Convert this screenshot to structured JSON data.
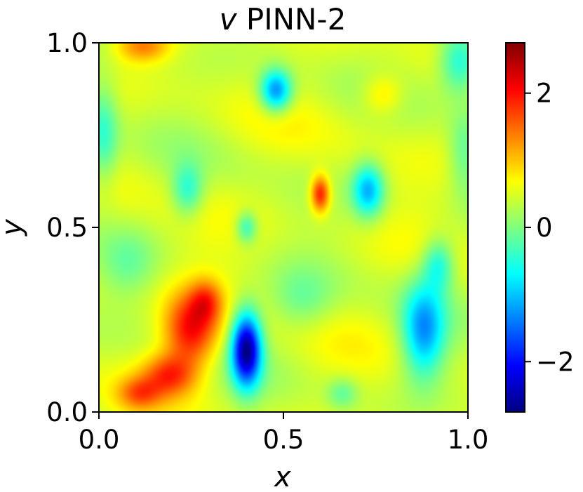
{
  "chart_data": {
    "type": "heatmap",
    "title_var": "v",
    "title_rest": " PINN-2",
    "xlabel": "x",
    "ylabel": "y",
    "xlim": [
      0.0,
      1.0
    ],
    "ylim": [
      0.0,
      1.0
    ],
    "x_ticks": [
      {
        "value": 0.0,
        "label": "0.0"
      },
      {
        "value": 0.5,
        "label": "0.5"
      },
      {
        "value": 1.0,
        "label": "1.0"
      }
    ],
    "y_ticks": [
      {
        "value": 0.0,
        "label": "0.0"
      },
      {
        "value": 0.5,
        "label": "0.5"
      },
      {
        "value": 1.0,
        "label": "1.0"
      }
    ],
    "colorbar": {
      "colormap": "jet",
      "range": [
        -2.75,
        2.75
      ],
      "ticks": [
        {
          "value": 2,
          "label": "2"
        },
        {
          "value": 0,
          "label": "0"
        },
        {
          "value": -2,
          "label": "−2"
        }
      ]
    },
    "background_value": 0.45,
    "field_features": [
      {
        "x": 0.25,
        "y": 0.22,
        "value": 1.6,
        "sx": 0.05,
        "sy": 0.07
      },
      {
        "x": 0.19,
        "y": 0.1,
        "value": 1.2,
        "sx": 0.05,
        "sy": 0.04
      },
      {
        "x": 0.29,
        "y": 0.3,
        "value": 0.9,
        "sx": 0.03,
        "sy": 0.04
      },
      {
        "x": 0.11,
        "y": 0.05,
        "value": 0.9,
        "sx": 0.04,
        "sy": 0.03
      },
      {
        "x": 0.6,
        "y": 0.59,
        "value": 1.6,
        "sx": 0.018,
        "sy": 0.035
      },
      {
        "x": 0.12,
        "y": 0.99,
        "value": 0.9,
        "sx": 0.05,
        "sy": 0.03
      },
      {
        "x": 0.77,
        "y": 0.86,
        "value": 0.6,
        "sx": 0.04,
        "sy": 0.04
      },
      {
        "x": 0.4,
        "y": 0.17,
        "value": -3.0,
        "sx": 0.028,
        "sy": 0.07
      },
      {
        "x": 0.48,
        "y": 0.87,
        "value": -1.8,
        "sx": 0.03,
        "sy": 0.04
      },
      {
        "x": 0.73,
        "y": 0.6,
        "value": -1.5,
        "sx": 0.03,
        "sy": 0.05
      },
      {
        "x": 0.88,
        "y": 0.22,
        "value": -1.6,
        "sx": 0.04,
        "sy": 0.09
      },
      {
        "x": 0.92,
        "y": 0.4,
        "value": -1.0,
        "sx": 0.03,
        "sy": 0.05
      },
      {
        "x": 0.24,
        "y": 0.6,
        "value": -0.9,
        "sx": 0.03,
        "sy": 0.05
      },
      {
        "x": 0.4,
        "y": 0.5,
        "value": -0.9,
        "sx": 0.02,
        "sy": 0.03
      },
      {
        "x": 0.98,
        "y": 0.95,
        "value": -1.2,
        "sx": 0.04,
        "sy": 0.06
      },
      {
        "x": 0.01,
        "y": 0.75,
        "value": -0.9,
        "sx": 0.03,
        "sy": 0.1
      },
      {
        "x": 0.99,
        "y": 0.7,
        "value": -0.6,
        "sx": 0.03,
        "sy": 0.08
      },
      {
        "x": 0.55,
        "y": 0.3,
        "value": -0.5,
        "sx": 0.06,
        "sy": 0.06
      },
      {
        "x": 0.08,
        "y": 0.4,
        "value": -0.4,
        "sx": 0.05,
        "sy": 0.06
      },
      {
        "x": 0.66,
        "y": 0.05,
        "value": -0.6,
        "sx": 0.03,
        "sy": 0.03
      }
    ]
  }
}
